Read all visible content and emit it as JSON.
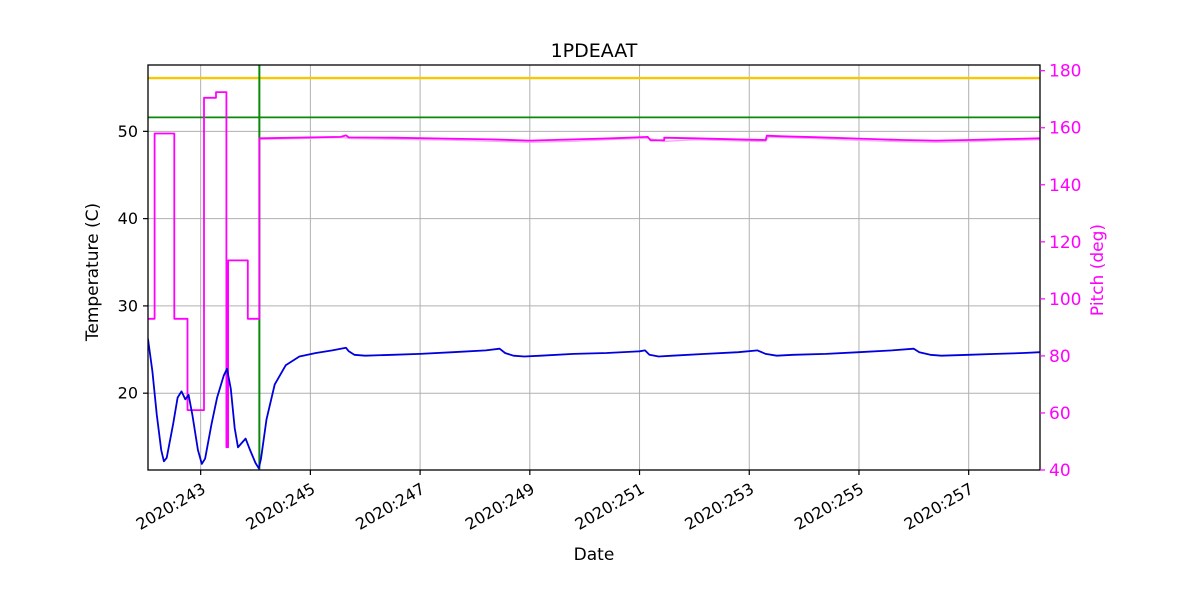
{
  "chart_data": {
    "type": "line",
    "title": "1PDEAAT",
    "grid": true,
    "legend": "none",
    "x": {
      "label": "Date",
      "min": 242.04,
      "max": 258.3,
      "ticks": [
        243,
        245,
        247,
        249,
        251,
        253,
        255,
        257
      ],
      "tick_labels": [
        "2020:243",
        "2020:245",
        "2020:247",
        "2020:249",
        "2020:251",
        "2020:253",
        "2020:255",
        "2020:257"
      ]
    },
    "y_left": {
      "label": "Temperature (C)",
      "min": 11.2,
      "max": 57.6,
      "ticks": [
        20,
        30,
        40,
        50
      ],
      "tick_labels": [
        "20",
        "30",
        "40",
        "50"
      ]
    },
    "y_right": {
      "label": "Pitch (deg)",
      "min": 40,
      "max": 182,
      "ticks": [
        40,
        60,
        80,
        100,
        120,
        140,
        160,
        180
      ],
      "tick_labels": [
        "40",
        "60",
        "80",
        "100",
        "120",
        "140",
        "160",
        "180"
      ]
    },
    "guides": {
      "yellow_limit_temp": 56.1,
      "green_limit_temp": 51.6,
      "green_vline_day": 244.07
    },
    "style": {
      "temperature": "#0000dd",
      "pitch": "#ff00ff",
      "pitch_secondary": "#f2aaf2",
      "grid": "#b0b0b0",
      "yellow": "#f7c800",
      "green": "#0a8a0a",
      "frame": "#000000",
      "background": "#ffffff"
    },
    "series": [
      {
        "name": "pitch_secondary",
        "axis": "right",
        "color_key": "pitch_secondary",
        "width": 1.4,
        "points": [
          [
            244.07,
            155.9
          ],
          [
            245.6,
            156.6
          ],
          [
            245.72,
            156.2
          ],
          [
            246.5,
            156.0
          ],
          [
            247.5,
            155.7
          ],
          [
            248.3,
            155.3
          ],
          [
            249.0,
            154.9
          ],
          [
            249.8,
            155.3
          ],
          [
            250.5,
            155.9
          ],
          [
            251.15,
            156.3
          ],
          [
            251.45,
            155.2
          ],
          [
            252.0,
            155.8
          ],
          [
            253.0,
            155.3
          ],
          [
            253.3,
            155.2
          ],
          [
            253.35,
            156.7
          ],
          [
            254.2,
            156.2
          ],
          [
            255.0,
            155.6
          ],
          [
            255.8,
            155.1
          ],
          [
            256.4,
            154.9
          ],
          [
            257.0,
            155.1
          ],
          [
            257.6,
            155.5
          ],
          [
            258.3,
            155.8
          ]
        ]
      },
      {
        "name": "pitch",
        "axis": "right",
        "color_key": "pitch",
        "width": 1.8,
        "points": [
          [
            242.04,
            93
          ],
          [
            242.16,
            93
          ],
          [
            242.16,
            158
          ],
          [
            242.52,
            158
          ],
          [
            242.52,
            93
          ],
          [
            242.76,
            93
          ],
          [
            242.76,
            61
          ],
          [
            243.06,
            61
          ],
          [
            243.06,
            170.5
          ],
          [
            243.28,
            170.5
          ],
          [
            243.28,
            172.5
          ],
          [
            243.47,
            172.5
          ],
          [
            243.47,
            48
          ],
          [
            243.5,
            48
          ],
          [
            243.5,
            113.5
          ],
          [
            243.86,
            113.5
          ],
          [
            243.86,
            93
          ],
          [
            244.07,
            93
          ],
          [
            244.07,
            156.3
          ],
          [
            245.55,
            156.8
          ],
          [
            245.65,
            157.3
          ],
          [
            245.7,
            156.6
          ],
          [
            246.5,
            156.5
          ],
          [
            247.5,
            156.2
          ],
          [
            248.3,
            155.9
          ],
          [
            249.0,
            155.5
          ],
          [
            249.8,
            155.9
          ],
          [
            250.5,
            156.3
          ],
          [
            251.15,
            156.8
          ],
          [
            251.2,
            155.6
          ],
          [
            251.45,
            155.6
          ],
          [
            251.45,
            156.5
          ],
          [
            252.0,
            156.3
          ],
          [
            253.0,
            155.8
          ],
          [
            253.3,
            155.7
          ],
          [
            253.32,
            157.2
          ],
          [
            253.6,
            157.0
          ],
          [
            254.2,
            156.7
          ],
          [
            255.0,
            156.2
          ],
          [
            255.8,
            155.7
          ],
          [
            256.4,
            155.5
          ],
          [
            257.0,
            155.7
          ],
          [
            257.6,
            156.0
          ],
          [
            258.3,
            156.3
          ]
        ]
      },
      {
        "name": "temperature",
        "axis": "left",
        "color_key": "temperature",
        "width": 1.8,
        "points": [
          [
            242.04,
            26.2
          ],
          [
            242.12,
            22.5
          ],
          [
            242.2,
            17.5
          ],
          [
            242.28,
            13.5
          ],
          [
            242.33,
            12.2
          ],
          [
            242.38,
            12.6
          ],
          [
            242.5,
            16.5
          ],
          [
            242.58,
            19.5
          ],
          [
            242.65,
            20.2
          ],
          [
            242.72,
            19.3
          ],
          [
            242.78,
            19.8
          ],
          [
            242.85,
            17.5
          ],
          [
            242.95,
            13.5
          ],
          [
            243.02,
            11.9
          ],
          [
            243.08,
            12.5
          ],
          [
            243.2,
            16.5
          ],
          [
            243.3,
            19.5
          ],
          [
            243.42,
            22.0
          ],
          [
            243.48,
            22.8
          ],
          [
            243.55,
            20.5
          ],
          [
            243.62,
            16.0
          ],
          [
            243.68,
            13.8
          ],
          [
            243.75,
            14.3
          ],
          [
            243.82,
            14.8
          ],
          [
            243.9,
            13.5
          ],
          [
            244.0,
            12.0
          ],
          [
            244.06,
            11.4
          ],
          [
            244.1,
            12.5
          ],
          [
            244.2,
            17.0
          ],
          [
            244.35,
            21.0
          ],
          [
            244.55,
            23.2
          ],
          [
            244.8,
            24.2
          ],
          [
            245.1,
            24.6
          ],
          [
            245.4,
            24.9
          ],
          [
            245.65,
            25.2
          ],
          [
            245.7,
            24.8
          ],
          [
            245.8,
            24.4
          ],
          [
            246.0,
            24.3
          ],
          [
            246.5,
            24.4
          ],
          [
            247.0,
            24.5
          ],
          [
            247.6,
            24.7
          ],
          [
            248.2,
            24.9
          ],
          [
            248.45,
            25.1
          ],
          [
            248.55,
            24.6
          ],
          [
            248.7,
            24.3
          ],
          [
            248.9,
            24.2
          ],
          [
            249.2,
            24.3
          ],
          [
            249.8,
            24.5
          ],
          [
            250.4,
            24.6
          ],
          [
            251.0,
            24.8
          ],
          [
            251.1,
            24.9
          ],
          [
            251.18,
            24.4
          ],
          [
            251.35,
            24.2
          ],
          [
            251.6,
            24.3
          ],
          [
            252.2,
            24.5
          ],
          [
            252.8,
            24.7
          ],
          [
            253.15,
            24.9
          ],
          [
            253.3,
            24.5
          ],
          [
            253.5,
            24.3
          ],
          [
            253.8,
            24.4
          ],
          [
            254.4,
            24.5
          ],
          [
            255.0,
            24.7
          ],
          [
            255.6,
            24.9
          ],
          [
            256.0,
            25.1
          ],
          [
            256.1,
            24.7
          ],
          [
            256.3,
            24.4
          ],
          [
            256.5,
            24.3
          ],
          [
            257.0,
            24.4
          ],
          [
            257.5,
            24.5
          ],
          [
            258.0,
            24.6
          ],
          [
            258.3,
            24.7
          ]
        ]
      }
    ]
  }
}
